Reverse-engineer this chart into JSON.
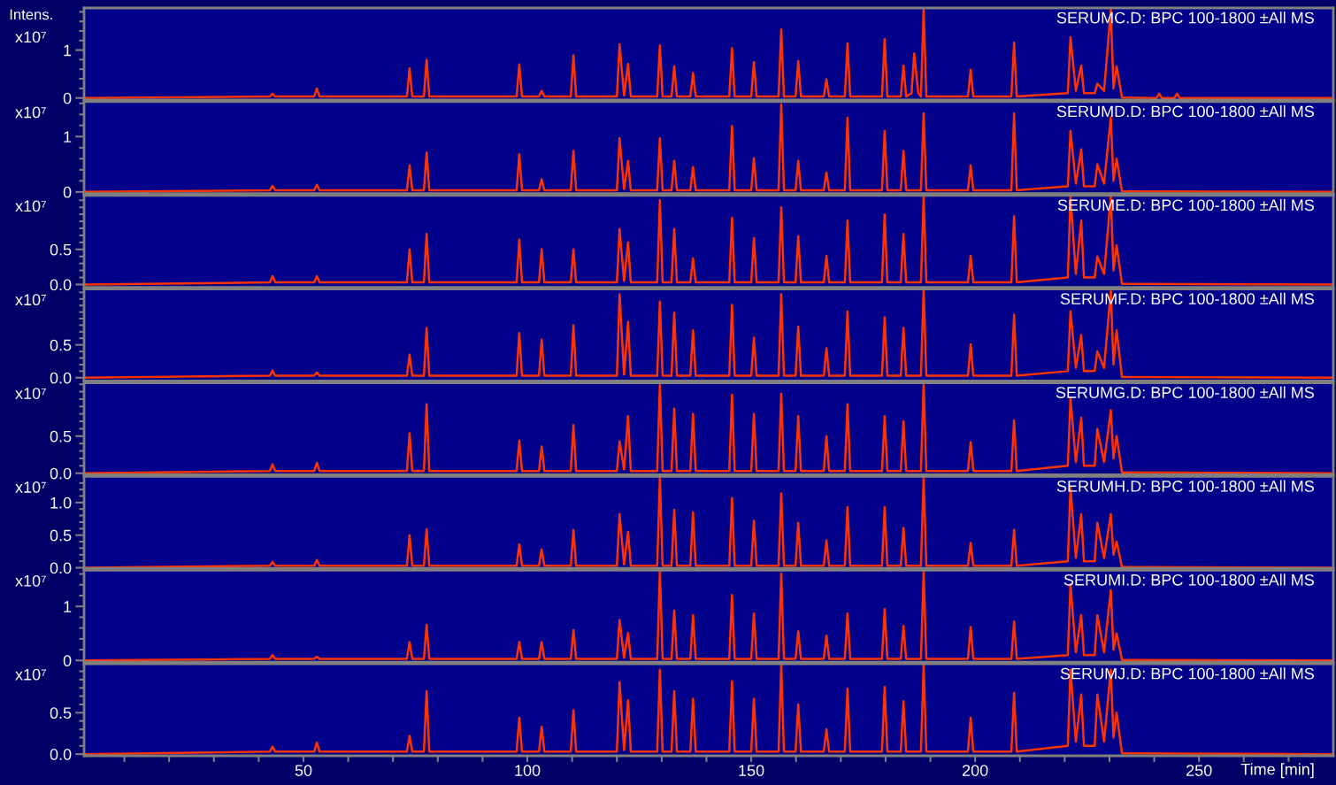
{
  "chart_data": [
    {
      "type": "line",
      "ylabel": "x10⁷",
      "annotations": [
        "Intens."
      ],
      "xlim": [
        1,
        280
      ],
      "ylim": [
        -0.04,
        1.88
      ],
      "tick_labels": "y",
      "grid": false,
      "legend": false,
      "yticks": [
        {
          "value": 0,
          "label": "0"
        },
        {
          "value": 0.2,
          "label": null
        },
        {
          "value": 0.4,
          "label": null
        },
        {
          "value": 0.6,
          "label": null
        },
        {
          "value": 0.8,
          "label": null
        },
        1,
        {
          "value": 1.2,
          "label": null
        },
        {
          "value": 1.4,
          "label": null
        },
        {
          "value": 1.6,
          "label": null
        },
        {
          "value": 1.8,
          "label": null
        }
      ],
      "series": [
        {
          "name": "SERUMC.D: BPC 100-1800 ±All MS",
          "color": "#ff3300",
          "x": [
            1,
            42.5,
            43.1,
            43.7,
            52.4,
            53.0,
            53.6,
            73.1,
            73.7,
            74.3,
            76.9,
            77.5,
            78.1,
            97.6,
            98.2,
            98.8,
            102.6,
            103.2,
            103.8,
            109.7,
            110.3,
            110.9,
            120.0,
            120.6,
            121.6,
            122.5,
            123.1,
            129.0,
            129.6,
            130.2,
            132.2,
            132.8,
            133.4,
            136.4,
            137.0,
            137.6,
            145.1,
            145.7,
            146.3,
            150.0,
            150.6,
            151.2,
            156.1,
            156.7,
            157.3,
            159.9,
            160.5,
            161.1,
            166.2,
            166.8,
            167.4,
            170.9,
            171.5,
            172.1,
            179.2,
            179.8,
            180.4,
            183.4,
            184.0,
            184.6,
            185.8,
            186.4,
            187.3,
            187.9,
            188.5,
            189.1,
            198.4,
            199.0,
            199.6,
            208.1,
            208.7,
            209.3,
            220.7,
            221.3,
            222.5,
            223.7,
            224.3,
            226.7,
            227.3,
            228.8,
            230.3,
            230.9,
            231.6,
            232.8,
            240.5,
            241.1,
            241.7,
            244.5,
            245.1,
            245.7,
            280
          ],
          "values": [
            0,
            0.03,
            0.09,
            0.03,
            0.03,
            0.2,
            0.03,
            0.03,
            0.62,
            0.03,
            0.03,
            0.8,
            0.03,
            0.03,
            0.7,
            0.03,
            0.03,
            0.15,
            0.03,
            0.03,
            0.89,
            0.03,
            0.03,
            1.12,
            0.05,
            0.71,
            0.03,
            0.03,
            1.1,
            0.03,
            0.03,
            0.66,
            0.03,
            0.03,
            0.52,
            0.03,
            0.03,
            1.04,
            0.03,
            0.03,
            0.75,
            0.03,
            0.03,
            1.43,
            0.03,
            0.03,
            0.77,
            0.03,
            0.03,
            0.39,
            0.03,
            0.03,
            1.14,
            0.03,
            0.03,
            1.23,
            0.03,
            0.03,
            0.68,
            0.03,
            0.1,
            0.93,
            0.1,
            0.03,
            1.85,
            0.03,
            0.03,
            0.59,
            0.03,
            0.03,
            1.16,
            0.03,
            0.1,
            1.27,
            0.15,
            0.68,
            0.1,
            0.1,
            0.3,
            0.15,
            1.84,
            0.2,
            0.66,
            0.01,
            0,
            0.09,
            0,
            0,
            0.09,
            0,
            0
          ]
        }
      ]
    },
    {
      "type": "line",
      "ylabel": "x10⁷",
      "xlim": [
        1,
        280
      ],
      "ylim": [
        -0.03,
        1.63
      ],
      "tick_labels": "y",
      "grid": false,
      "legend": false,
      "yticks": [
        {
          "value": 0,
          "label": "0"
        },
        {
          "value": 0.2,
          "label": null
        },
        {
          "value": 0.4,
          "label": null
        },
        {
          "value": 0.6,
          "label": null
        },
        {
          "value": 0.8,
          "label": null
        },
        1,
        {
          "value": 1.2,
          "label": null
        },
        {
          "value": 1.4,
          "label": null
        },
        {
          "value": 1.6,
          "label": null
        }
      ],
      "series": [
        {
          "name": "SERUMD.D: BPC 100-1800 ±All MS",
          "color": "#ff3300",
          "x": [
            1,
            42.5,
            43.1,
            43.7,
            52.4,
            53.0,
            53.6,
            73.1,
            73.7,
            74.3,
            76.9,
            77.5,
            78.1,
            97.6,
            98.2,
            98.8,
            102.6,
            103.2,
            103.8,
            109.7,
            110.3,
            110.9,
            120.0,
            120.6,
            121.6,
            122.5,
            123.1,
            129.0,
            129.6,
            130.2,
            132.2,
            132.8,
            133.4,
            136.4,
            137.0,
            137.6,
            145.1,
            145.7,
            146.3,
            150.0,
            150.6,
            151.2,
            156.1,
            156.7,
            157.3,
            159.9,
            160.5,
            161.1,
            166.2,
            166.8,
            167.4,
            170.9,
            171.5,
            172.1,
            179.2,
            179.8,
            180.4,
            183.4,
            184.0,
            184.6,
            187.9,
            188.5,
            189.1,
            198.4,
            199.0,
            199.6,
            208.1,
            208.7,
            209.3,
            220.7,
            221.3,
            222.5,
            223.7,
            224.3,
            226.7,
            227.3,
            228.8,
            230.3,
            230.9,
            231.6,
            232.8,
            280
          ],
          "values": [
            0,
            0.03,
            0.11,
            0.03,
            0.03,
            0.13,
            0.03,
            0.03,
            0.48,
            0.03,
            0.03,
            0.71,
            0.03,
            0.03,
            0.68,
            0.03,
            0.03,
            0.23,
            0.03,
            0.03,
            0.74,
            0.03,
            0.03,
            0.97,
            0.05,
            0.56,
            0.03,
            0.03,
            0.97,
            0.03,
            0.03,
            0.56,
            0.03,
            0.03,
            0.45,
            0.03,
            0.03,
            1.19,
            0.03,
            0.03,
            0.61,
            0.03,
            0.03,
            1.58,
            0.03,
            0.03,
            0.56,
            0.03,
            0.03,
            0.35,
            0.03,
            0.03,
            1.34,
            0.03,
            0.03,
            1.1,
            0.03,
            0.03,
            0.74,
            0.03,
            0.03,
            1.42,
            0.03,
            0.03,
            0.48,
            0.03,
            0.03,
            1.42,
            0.03,
            0.1,
            1.1,
            0.15,
            0.77,
            0.1,
            0.1,
            0.5,
            0.15,
            1.35,
            0.2,
            0.6,
            0.01,
            0
          ]
        }
      ]
    },
    {
      "type": "line",
      "ylabel": "x10⁷",
      "xlim": [
        1,
        280
      ],
      "ylim": [
        -0.04,
        1.27
      ],
      "tick_labels": "y",
      "grid": false,
      "legend": false,
      "yticks": [
        {
          "value": 0,
          "label": "0.0"
        },
        {
          "value": 0.1,
          "label": null
        },
        {
          "value": 0.2,
          "label": null
        },
        {
          "value": 0.3,
          "label": null
        },
        {
          "value": 0.4,
          "label": null
        },
        0.5,
        {
          "value": 0.6,
          "label": null
        },
        {
          "value": 0.7,
          "label": null
        },
        {
          "value": 0.8,
          "label": null
        },
        {
          "value": 0.9,
          "label": null
        },
        {
          "value": 1.0,
          "label": null
        },
        {
          "value": 1.1,
          "label": null
        },
        {
          "value": 1.2,
          "label": null
        }
      ],
      "series": [
        {
          "name": "SERUME.D: BPC 100-1800 ±All MS",
          "color": "#ff3300",
          "x": [
            1,
            42.5,
            43.1,
            43.7,
            52.4,
            53.0,
            53.6,
            73.1,
            73.7,
            74.3,
            76.9,
            77.5,
            78.1,
            97.6,
            98.2,
            98.8,
            102.6,
            103.2,
            103.8,
            109.7,
            110.3,
            110.9,
            120.0,
            120.6,
            121.6,
            122.5,
            123.1,
            129.0,
            129.6,
            130.2,
            132.2,
            132.8,
            133.4,
            136.4,
            137.0,
            137.6,
            145.1,
            145.7,
            146.3,
            150.0,
            150.6,
            151.2,
            156.1,
            156.7,
            157.3,
            159.9,
            160.5,
            161.1,
            166.2,
            166.8,
            167.4,
            170.9,
            171.5,
            172.1,
            179.2,
            179.8,
            180.4,
            183.4,
            184.0,
            184.6,
            187.9,
            188.5,
            189.1,
            198.4,
            199.0,
            199.6,
            208.1,
            208.7,
            209.3,
            220.7,
            221.3,
            222.5,
            223.7,
            224.3,
            226.7,
            227.3,
            228.8,
            230.3,
            230.9,
            231.6,
            232.8,
            280
          ],
          "values": [
            0,
            0.03,
            0.12,
            0.03,
            0.03,
            0.12,
            0.03,
            0.03,
            0.5,
            0.03,
            0.03,
            0.72,
            0.03,
            0.03,
            0.64,
            0.03,
            0.03,
            0.5,
            0.03,
            0.03,
            0.5,
            0.03,
            0.03,
            0.79,
            0.05,
            0.6,
            0.03,
            0.03,
            1.2,
            0.03,
            0.03,
            0.79,
            0.03,
            0.03,
            0.37,
            0.03,
            0.03,
            0.95,
            0.03,
            0.03,
            0.66,
            0.03,
            0.03,
            1.1,
            0.03,
            0.03,
            0.69,
            0.03,
            0.03,
            0.41,
            0.03,
            0.03,
            0.91,
            0.03,
            0.03,
            1.0,
            0.03,
            0.03,
            0.72,
            0.03,
            0.03,
            1.26,
            0.03,
            0.03,
            0.41,
            0.03,
            0.03,
            0.97,
            0.03,
            0.1,
            1.25,
            0.15,
            0.91,
            0.1,
            0.1,
            0.4,
            0.15,
            1.26,
            0.2,
            0.56,
            0.01,
            0
          ]
        }
      ]
    },
    {
      "type": "line",
      "ylabel": "x10⁷",
      "xlim": [
        1,
        280
      ],
      "ylim": [
        -0.05,
        1.35
      ],
      "tick_labels": "y",
      "grid": false,
      "legend": false,
      "yticks": [
        {
          "value": 0,
          "label": "0.0"
        },
        {
          "value": 0.1,
          "label": null
        },
        {
          "value": 0.2,
          "label": null
        },
        {
          "value": 0.3,
          "label": null
        },
        {
          "value": 0.4,
          "label": null
        },
        0.5,
        {
          "value": 0.6,
          "label": null
        },
        {
          "value": 0.7,
          "label": null
        },
        {
          "value": 0.8,
          "label": null
        },
        {
          "value": 0.9,
          "label": null
        },
        {
          "value": 1.0,
          "label": null
        },
        {
          "value": 1.1,
          "label": null
        },
        {
          "value": 1.2,
          "label": null
        },
        {
          "value": 1.3,
          "label": null
        }
      ],
      "series": [
        {
          "name": "SERUMF.D: BPC 100-1800 ±All MS",
          "color": "#ff3300",
          "x": [
            1,
            42.5,
            43.1,
            43.7,
            52.4,
            53.0,
            53.6,
            73.1,
            73.7,
            74.3,
            76.9,
            77.5,
            78.1,
            97.6,
            98.2,
            98.8,
            102.6,
            103.2,
            103.8,
            109.7,
            110.3,
            110.9,
            120.0,
            120.6,
            121.6,
            122.5,
            123.1,
            129.0,
            129.6,
            130.2,
            132.2,
            132.8,
            133.4,
            136.4,
            137.0,
            137.6,
            145.1,
            145.7,
            146.3,
            150.0,
            150.6,
            151.2,
            156.1,
            156.7,
            157.3,
            159.9,
            160.5,
            161.1,
            166.2,
            166.8,
            167.4,
            170.9,
            171.5,
            172.1,
            179.2,
            179.8,
            180.4,
            183.4,
            184.0,
            184.6,
            187.9,
            188.5,
            189.1,
            198.4,
            199.0,
            199.6,
            208.1,
            208.7,
            209.3,
            220.7,
            221.3,
            222.5,
            223.7,
            224.3,
            226.7,
            227.3,
            228.8,
            230.3,
            230.9,
            231.6,
            232.8,
            280
          ],
          "values": [
            0,
            0.03,
            0.11,
            0.03,
            0.03,
            0.08,
            0.03,
            0.03,
            0.35,
            0.03,
            0.03,
            0.76,
            0.03,
            0.03,
            0.68,
            0.03,
            0.03,
            0.58,
            0.03,
            0.03,
            0.8,
            0.03,
            0.03,
            1.27,
            0.05,
            0.85,
            0.03,
            0.03,
            1.16,
            0.03,
            0.03,
            0.99,
            0.03,
            0.03,
            0.72,
            0.03,
            0.03,
            1.11,
            0.03,
            0.03,
            0.61,
            0.03,
            0.03,
            1.27,
            0.03,
            0.03,
            0.78,
            0.03,
            0.03,
            0.45,
            0.03,
            0.03,
            1.01,
            0.03,
            0.03,
            0.92,
            0.03,
            0.03,
            0.76,
            0.03,
            0.03,
            1.35,
            0.03,
            0.03,
            0.51,
            0.03,
            0.03,
            0.96,
            0.03,
            0.1,
            1.01,
            0.15,
            0.65,
            0.1,
            0.1,
            0.4,
            0.15,
            1.32,
            0.2,
            0.72,
            0.01,
            0
          ]
        }
      ]
    },
    {
      "type": "line",
      "ylabel": "x10⁷",
      "xlim": [
        1,
        280
      ],
      "ylim": [
        -0.02,
        1.22
      ],
      "tick_labels": "y",
      "grid": false,
      "legend": false,
      "yticks": [
        {
          "value": 0,
          "label": "0.0"
        },
        {
          "value": 0.1,
          "label": null
        },
        {
          "value": 0.2,
          "label": null
        },
        {
          "value": 0.3,
          "label": null
        },
        {
          "value": 0.4,
          "label": null
        },
        0.5,
        {
          "value": 0.6,
          "label": null
        },
        {
          "value": 0.7,
          "label": null
        },
        {
          "value": 0.8,
          "label": null
        },
        {
          "value": 0.9,
          "label": null
        },
        {
          "value": 1.0,
          "label": null
        },
        {
          "value": 1.1,
          "label": null
        },
        {
          "value": 1.2,
          "label": null
        }
      ],
      "series": [
        {
          "name": "SERUMG.D: BPC 100-1800 ±All MS",
          "color": "#ff3300",
          "x": [
            1,
            42.5,
            43.1,
            43.7,
            52.4,
            53.0,
            53.6,
            73.1,
            73.7,
            74.3,
            76.9,
            77.5,
            78.1,
            97.6,
            98.2,
            98.8,
            102.6,
            103.2,
            103.8,
            109.7,
            110.3,
            110.9,
            120.0,
            120.6,
            121.6,
            122.5,
            123.1,
            129.0,
            129.6,
            130.2,
            132.2,
            132.8,
            133.4,
            136.4,
            137.0,
            137.6,
            145.1,
            145.7,
            146.3,
            150.0,
            150.6,
            151.2,
            156.1,
            156.7,
            157.3,
            159.9,
            160.5,
            161.1,
            166.2,
            166.8,
            167.4,
            170.9,
            171.5,
            172.1,
            179.2,
            179.8,
            180.4,
            183.4,
            184.0,
            184.6,
            187.9,
            188.5,
            189.1,
            198.4,
            199.0,
            199.6,
            208.1,
            208.7,
            209.3,
            220.7,
            221.3,
            222.5,
            223.7,
            224.3,
            226.7,
            227.3,
            228.8,
            230.3,
            230.9,
            231.6,
            232.8,
            280
          ],
          "values": [
            0,
            0.03,
            0.12,
            0.03,
            0.03,
            0.14,
            0.03,
            0.03,
            0.54,
            0.03,
            0.03,
            0.93,
            0.03,
            0.03,
            0.44,
            0.03,
            0.03,
            0.36,
            0.03,
            0.03,
            0.65,
            0.03,
            0.03,
            0.43,
            0.05,
            0.77,
            0.03,
            0.03,
            1.21,
            0.03,
            0.03,
            0.87,
            0.03,
            0.03,
            0.8,
            0.03,
            0.03,
            1.06,
            0.03,
            0.03,
            0.8,
            0.03,
            0.03,
            1.07,
            0.03,
            0.03,
            0.77,
            0.03,
            0.03,
            0.5,
            0.03,
            0.03,
            0.93,
            0.03,
            0.03,
            0.77,
            0.03,
            0.03,
            0.7,
            0.03,
            0.03,
            1.21,
            0.03,
            0.03,
            0.42,
            0.03,
            0.03,
            0.71,
            0.03,
            0.1,
            1.01,
            0.15,
            0.75,
            0.1,
            0.1,
            0.6,
            0.15,
            0.85,
            0.2,
            0.5,
            0.01,
            0
          ]
        }
      ]
    },
    {
      "type": "line",
      "ylabel": "x10⁷",
      "xlim": [
        1,
        280
      ],
      "ylim": [
        -0.01,
        1.4
      ],
      "tick_labels": "y",
      "grid": false,
      "legend": false,
      "yticks": [
        {
          "value": 0,
          "label": "0.0"
        },
        {
          "value": 0.1,
          "label": null
        },
        {
          "value": 0.2,
          "label": null
        },
        {
          "value": 0.3,
          "label": null
        },
        {
          "value": 0.4,
          "label": null
        },
        0.5,
        {
          "value": 0.6,
          "label": null
        },
        {
          "value": 0.7,
          "label": null
        },
        {
          "value": 0.8,
          "label": null
        },
        {
          "value": 0.9,
          "label": null
        },
        {
          "value": 1.0,
          "label": "1.0"
        },
        {
          "value": 1.1,
          "label": null
        },
        {
          "value": 1.2,
          "label": null
        },
        {
          "value": 1.3,
          "label": null
        }
      ],
      "series": [
        {
          "name": "SERUMH.D: BPC 100-1800 ±All MS",
          "color": "#ff3300",
          "x": [
            1,
            42.5,
            43.1,
            43.7,
            52.4,
            53.0,
            53.6,
            73.1,
            73.7,
            74.3,
            76.9,
            77.5,
            78.1,
            97.6,
            98.2,
            98.8,
            102.6,
            103.2,
            103.8,
            109.7,
            110.3,
            110.9,
            120.0,
            120.6,
            121.6,
            122.5,
            123.1,
            129.0,
            129.6,
            130.2,
            132.2,
            132.8,
            133.4,
            136.4,
            137.0,
            137.6,
            145.1,
            145.7,
            146.3,
            150.0,
            150.6,
            151.2,
            156.1,
            156.7,
            157.3,
            159.9,
            160.5,
            161.1,
            166.2,
            166.8,
            167.4,
            170.9,
            171.5,
            172.1,
            179.2,
            179.8,
            180.4,
            183.4,
            184.0,
            184.6,
            187.9,
            188.5,
            189.1,
            198.4,
            199.0,
            199.6,
            208.1,
            208.7,
            209.3,
            220.7,
            221.3,
            222.5,
            223.7,
            224.3,
            226.7,
            227.3,
            228.8,
            230.3,
            230.9,
            231.6,
            232.8,
            280
          ],
          "values": [
            0,
            0.03,
            0.09,
            0.03,
            0.03,
            0.12,
            0.03,
            0.03,
            0.5,
            0.03,
            0.03,
            0.59,
            0.03,
            0.03,
            0.36,
            0.03,
            0.03,
            0.28,
            0.03,
            0.03,
            0.58,
            0.03,
            0.03,
            0.82,
            0.05,
            0.55,
            0.03,
            0.03,
            1.39,
            0.03,
            0.03,
            0.89,
            0.03,
            0.03,
            0.85,
            0.03,
            0.03,
            1.07,
            0.03,
            0.03,
            0.72,
            0.03,
            0.03,
            1.14,
            0.03,
            0.03,
            0.69,
            0.03,
            0.03,
            0.42,
            0.03,
            0.03,
            0.93,
            0.03,
            0.03,
            0.93,
            0.03,
            0.03,
            0.61,
            0.03,
            0.03,
            1.39,
            0.03,
            0.03,
            0.38,
            0.03,
            0.03,
            0.58,
            0.03,
            0.1,
            1.23,
            0.15,
            0.82,
            0.1,
            0.1,
            0.69,
            0.15,
            0.82,
            0.2,
            0.4,
            0.01,
            0
          ]
        }
      ]
    },
    {
      "type": "line",
      "ylabel": "x10⁷",
      "xlim": [
        1,
        280
      ],
      "ylim": [
        -0.03,
        1.67
      ],
      "tick_labels": "y",
      "grid": false,
      "legend": false,
      "yticks": [
        {
          "value": 0,
          "label": "0"
        },
        {
          "value": 0.2,
          "label": null
        },
        {
          "value": 0.4,
          "label": null
        },
        {
          "value": 0.6,
          "label": null
        },
        {
          "value": 0.8,
          "label": null
        },
        1,
        {
          "value": 1.2,
          "label": null
        },
        {
          "value": 1.4,
          "label": null
        },
        {
          "value": 1.6,
          "label": null
        }
      ],
      "series": [
        {
          "name": "SERUMI.D: BPC 100-1800 ±All MS",
          "color": "#ff3300",
          "x": [
            1,
            42.5,
            43.1,
            43.7,
            52.4,
            53.0,
            53.6,
            73.1,
            73.7,
            74.3,
            76.9,
            77.5,
            78.1,
            97.6,
            98.2,
            98.8,
            102.6,
            103.2,
            103.8,
            109.7,
            110.3,
            110.9,
            120.0,
            120.6,
            121.6,
            122.5,
            123.1,
            129.0,
            129.6,
            130.2,
            132.2,
            132.8,
            133.4,
            136.4,
            137.0,
            137.6,
            145.1,
            145.7,
            146.3,
            150.0,
            150.6,
            151.2,
            156.1,
            156.7,
            157.3,
            159.9,
            160.5,
            161.1,
            166.2,
            166.8,
            167.4,
            170.9,
            171.5,
            172.1,
            179.2,
            179.8,
            180.4,
            183.4,
            184.0,
            184.6,
            187.9,
            188.5,
            189.1,
            198.4,
            199.0,
            199.6,
            208.1,
            208.7,
            209.3,
            220.7,
            221.3,
            222.5,
            223.7,
            224.3,
            226.7,
            227.3,
            228.8,
            230.3,
            230.9,
            231.6,
            232.8,
            280
          ],
          "values": [
            0,
            0.03,
            0.1,
            0.03,
            0.03,
            0.07,
            0.03,
            0.03,
            0.34,
            0.03,
            0.03,
            0.66,
            0.03,
            0.03,
            0.34,
            0.03,
            0.03,
            0.34,
            0.03,
            0.03,
            0.56,
            0.03,
            0.03,
            0.75,
            0.05,
            0.51,
            0.03,
            0.03,
            1.66,
            0.03,
            0.03,
            0.92,
            0.03,
            0.03,
            0.84,
            0.03,
            0.03,
            1.21,
            0.03,
            0.03,
            0.87,
            0.03,
            0.03,
            1.61,
            0.03,
            0.03,
            0.54,
            0.03,
            0.03,
            0.46,
            0.03,
            0.03,
            0.87,
            0.03,
            0.03,
            0.95,
            0.03,
            0.03,
            0.64,
            0.03,
            0.03,
            1.64,
            0.03,
            0.03,
            0.62,
            0.03,
            0.03,
            0.72,
            0.03,
            0.1,
            1.41,
            0.15,
            0.84,
            0.1,
            0.1,
            0.84,
            0.15,
            1.3,
            0.2,
            0.5,
            0.01,
            0
          ]
        }
      ]
    },
    {
      "type": "line",
      "ylabel": "x10⁷",
      "xlabel": "Time [min]",
      "xlim": [
        1,
        280
      ],
      "ylim": [
        -0.02,
        1.09
      ],
      "grid": false,
      "legend": false,
      "xticks": [
        {
          "value": 10,
          "label": null
        },
        {
          "value": 20,
          "label": null
        },
        {
          "value": 30,
          "label": null
        },
        {
          "value": 40,
          "label": null
        },
        50,
        {
          "value": 60,
          "label": null
        },
        {
          "value": 70,
          "label": null
        },
        {
          "value": 80,
          "label": null
        },
        {
          "value": 90,
          "label": null
        },
        100,
        {
          "value": 110,
          "label": null
        },
        {
          "value": 120,
          "label": null
        },
        {
          "value": 130,
          "label": null
        },
        {
          "value": 140,
          "label": null
        },
        150,
        {
          "value": 160,
          "label": null
        },
        {
          "value": 170,
          "label": null
        },
        {
          "value": 180,
          "label": null
        },
        {
          "value": 190,
          "label": null
        },
        200,
        {
          "value": 210,
          "label": null
        },
        {
          "value": 220,
          "label": null
        },
        {
          "value": 230,
          "label": null
        },
        {
          "value": 240,
          "label": null
        },
        250,
        {
          "value": 260,
          "label": null
        },
        {
          "value": 270,
          "label": null
        }
      ],
      "yticks": [
        {
          "value": 0,
          "label": "0.0"
        },
        {
          "value": 0.1,
          "label": null
        },
        {
          "value": 0.2,
          "label": null
        },
        {
          "value": 0.3,
          "label": null
        },
        {
          "value": 0.4,
          "label": null
        },
        0.5,
        {
          "value": 0.6,
          "label": null
        },
        {
          "value": 0.7,
          "label": null
        },
        {
          "value": 0.8,
          "label": null
        },
        {
          "value": 0.9,
          "label": null
        },
        {
          "value": 1.0,
          "label": null
        }
      ],
      "series": [
        {
          "name": "SERUMJ.D: BPC 100-1800 ±All MS",
          "color": "#ff3300",
          "x": [
            1,
            42.5,
            43.1,
            43.7,
            52.4,
            53.0,
            53.6,
            73.1,
            73.7,
            74.3,
            76.9,
            77.5,
            78.1,
            97.6,
            98.2,
            98.8,
            102.6,
            103.2,
            103.8,
            109.7,
            110.3,
            110.9,
            120.0,
            120.6,
            121.6,
            122.5,
            123.1,
            129.0,
            129.6,
            130.2,
            132.2,
            132.8,
            133.4,
            136.4,
            137.0,
            137.6,
            145.1,
            145.7,
            146.3,
            150.0,
            150.6,
            151.2,
            156.1,
            156.7,
            157.3,
            159.9,
            160.5,
            161.1,
            166.2,
            166.8,
            167.4,
            170.9,
            171.5,
            172.1,
            179.2,
            179.8,
            180.4,
            183.4,
            184.0,
            184.6,
            187.9,
            188.5,
            189.1,
            198.4,
            199.0,
            199.6,
            208.1,
            208.7,
            209.3,
            220.7,
            221.3,
            222.5,
            223.7,
            224.3,
            226.7,
            227.3,
            228.8,
            230.3,
            230.9,
            231.6,
            232.8,
            280
          ],
          "values": [
            0,
            0.03,
            0.09,
            0.03,
            0.03,
            0.14,
            0.03,
            0.03,
            0.22,
            0.03,
            0.03,
            0.76,
            0.03,
            0.03,
            0.44,
            0.03,
            0.03,
            0.33,
            0.03,
            0.03,
            0.53,
            0.03,
            0.03,
            0.87,
            0.05,
            0.65,
            0.03,
            0.03,
            1.02,
            0.03,
            0.03,
            0.76,
            0.03,
            0.03,
            0.67,
            0.03,
            0.03,
            0.88,
            0.03,
            0.03,
            0.67,
            0.03,
            0.03,
            1.08,
            0.03,
            0.03,
            0.6,
            0.03,
            0.03,
            0.3,
            0.03,
            0.03,
            0.79,
            0.03,
            0.03,
            0.81,
            0.03,
            0.03,
            0.64,
            0.03,
            0.03,
            1.08,
            0.03,
            0.03,
            0.44,
            0.03,
            0.03,
            0.74,
            0.03,
            0.1,
            1.02,
            0.15,
            0.72,
            0.1,
            0.1,
            0.72,
            0.15,
            1.02,
            0.2,
            0.5,
            0.01,
            0
          ]
        }
      ]
    }
  ]
}
